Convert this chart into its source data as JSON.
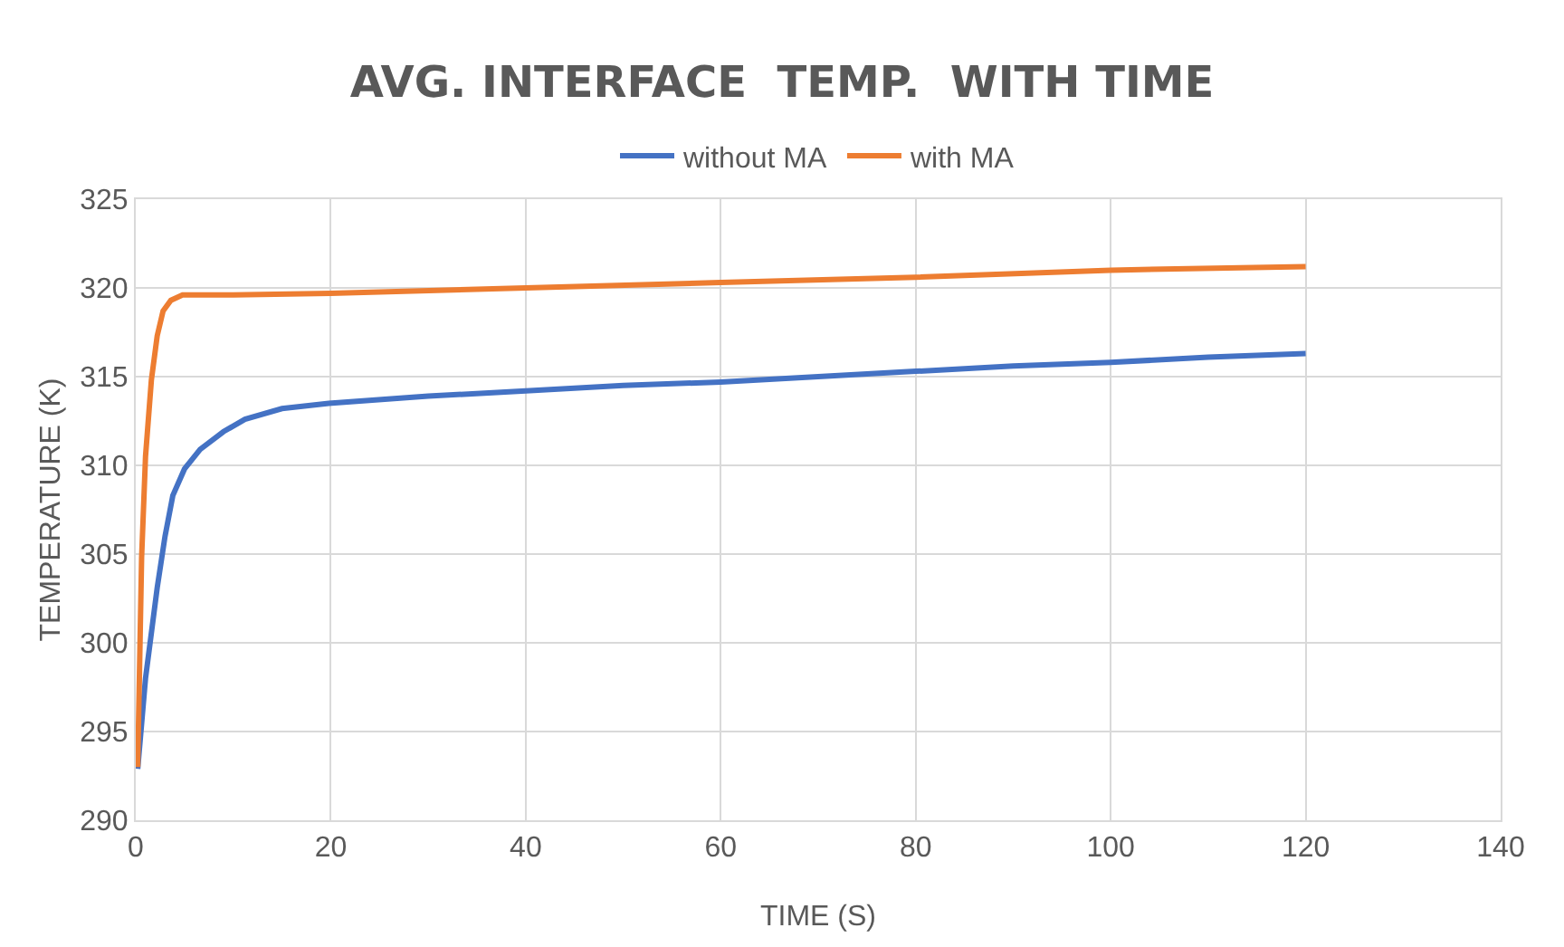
{
  "chart_data": {
    "type": "line",
    "title": "AVG. INTERFACE  TEMP.  WITH TIME",
    "xlabel": "TIME (S)",
    "ylabel": "TEMPERATURE (K)",
    "xlim": [
      0,
      140
    ],
    "xticks": [
      0,
      20,
      40,
      60,
      80,
      100,
      120,
      140
    ],
    "ylim": [
      290,
      325
    ],
    "yticks": [
      290,
      295,
      300,
      305,
      310,
      315,
      320,
      325
    ],
    "grid": true,
    "legend": "top",
    "marker": "none",
    "line_style": "solid",
    "series": [
      {
        "name": "without MA",
        "color": "#4472c4",
        "x": [
          0.2,
          1,
          2.2,
          3,
          3.8,
          5,
          6.6,
          9,
          11.2,
          15,
          19.8,
          30,
          40,
          50,
          60,
          70,
          80,
          90,
          100,
          110,
          120
        ],
        "values": [
          292.9,
          298,
          303.1,
          306,
          308.3,
          309.8,
          310.9,
          311.9,
          312.6,
          313.2,
          313.5,
          313.9,
          314.2,
          314.5,
          314.7,
          315,
          315.3,
          315.6,
          315.8,
          316.1,
          316.3
        ]
      },
      {
        "name": "with MA",
        "color": "#ed7d31",
        "x": [
          0.2,
          0.6,
          1,
          1.6,
          2.2,
          2.8,
          3.6,
          4.8,
          7,
          10,
          20,
          40,
          60,
          80,
          100,
          120
        ],
        "values": [
          293,
          304.8,
          310.5,
          314.8,
          317.3,
          318.7,
          319.3,
          319.6,
          319.6,
          319.6,
          319.7,
          320.0,
          320.3,
          320.6,
          321.0,
          321.2
        ]
      }
    ]
  }
}
